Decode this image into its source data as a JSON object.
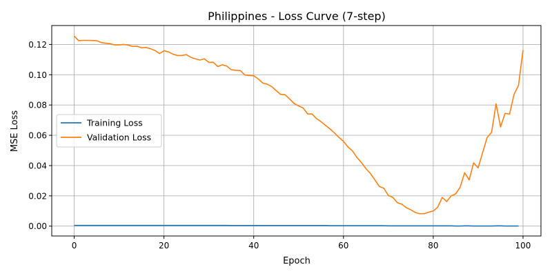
{
  "chart_data": {
    "type": "line",
    "title": "Philippines - Loss Curve (7-step)",
    "xlabel": "Epoch",
    "ylabel": "MSE Loss",
    "xlim": [
      -5,
      104
    ],
    "ylim": [
      -0.0065,
      0.1325
    ],
    "xticks": [
      0,
      20,
      40,
      60,
      80,
      100
    ],
    "yticks": [
      0.0,
      0.02,
      0.04,
      0.06,
      0.08,
      0.1,
      0.12
    ],
    "ytick_labels": [
      "0.00",
      "0.02",
      "0.04",
      "0.06",
      "0.08",
      "0.10",
      "0.12"
    ],
    "grid": true,
    "legend": "center-left",
    "series": [
      {
        "name": "Training Loss",
        "color": "#1f77b4",
        "x_start": 0,
        "values": [
          0.0005,
          0.0005,
          0.0005,
          0.0005,
          0.0005,
          0.0005,
          0.0005,
          0.0005,
          0.0005,
          0.0005,
          0.0005,
          0.0005,
          0.0005,
          0.0005,
          0.0005,
          0.0005,
          0.0005,
          0.0005,
          0.0005,
          0.0005,
          0.0005,
          0.0005,
          0.0005,
          0.0005,
          0.0005,
          0.0005,
          0.0005,
          0.0005,
          0.0005,
          0.0005,
          0.0005,
          0.0005,
          0.0005,
          0.0005,
          0.0005,
          0.0004,
          0.0004,
          0.0004,
          0.0004,
          0.0004,
          0.0004,
          0.0004,
          0.0004,
          0.0004,
          0.0004,
          0.0004,
          0.0004,
          0.0004,
          0.0004,
          0.0004,
          0.0004,
          0.0004,
          0.0004,
          0.0004,
          0.0004,
          0.0004,
          0.0004,
          0.0003,
          0.0003,
          0.0003,
          0.0003,
          0.0003,
          0.0003,
          0.0003,
          0.0003,
          0.0003,
          0.0003,
          0.0003,
          0.0003,
          0.0003,
          0.0002,
          0.0002,
          0.0002,
          0.0002,
          0.0002,
          0.0002,
          0.0002,
          0.0002,
          0.0002,
          0.0002,
          0.0002,
          0.0002,
          0.0002,
          0.0002,
          0.0002,
          0.0001,
          0.0001,
          0.0002,
          0.0002,
          0.0001,
          0.0001,
          0.0001,
          0.0001,
          0.0001,
          0.0002,
          0.0002,
          0.0001,
          0.0001,
          0.0001,
          0.0001
        ]
      },
      {
        "name": "Validation Loss",
        "color": "#ff7f0e",
        "x_start": 0,
        "values": [
          0.1255,
          0.1225,
          0.1227,
          0.1227,
          0.1226,
          0.1225,
          0.1213,
          0.1208,
          0.1205,
          0.1197,
          0.1197,
          0.12,
          0.1196,
          0.1187,
          0.1188,
          0.1178,
          0.118,
          0.1172,
          0.116,
          0.114,
          0.1158,
          0.1151,
          0.1136,
          0.1127,
          0.1127,
          0.1133,
          0.1115,
          0.1105,
          0.1097,
          0.1105,
          0.1082,
          0.1082,
          0.1054,
          0.1066,
          0.1057,
          0.1033,
          0.1029,
          0.1028,
          0.0999,
          0.0995,
          0.0993,
          0.0973,
          0.0945,
          0.0938,
          0.0922,
          0.0895,
          0.087,
          0.0868,
          0.084,
          0.081,
          0.0794,
          0.0781,
          0.0741,
          0.0741,
          0.071,
          0.069,
          0.0666,
          0.0642,
          0.0615,
          0.0586,
          0.056,
          0.0523,
          0.0497,
          0.0453,
          0.042,
          0.038,
          0.0348,
          0.0305,
          0.0262,
          0.025,
          0.0202,
          0.019,
          0.0155,
          0.0145,
          0.0122,
          0.0108,
          0.009,
          0.0082,
          0.0082,
          0.0092,
          0.01,
          0.0125,
          0.019,
          0.0162,
          0.02,
          0.0213,
          0.0258,
          0.0353,
          0.0305,
          0.0418,
          0.0385,
          0.0485,
          0.0585,
          0.062,
          0.0808,
          0.0655,
          0.0745,
          0.074,
          0.087,
          0.093,
          0.1162
        ]
      }
    ]
  }
}
